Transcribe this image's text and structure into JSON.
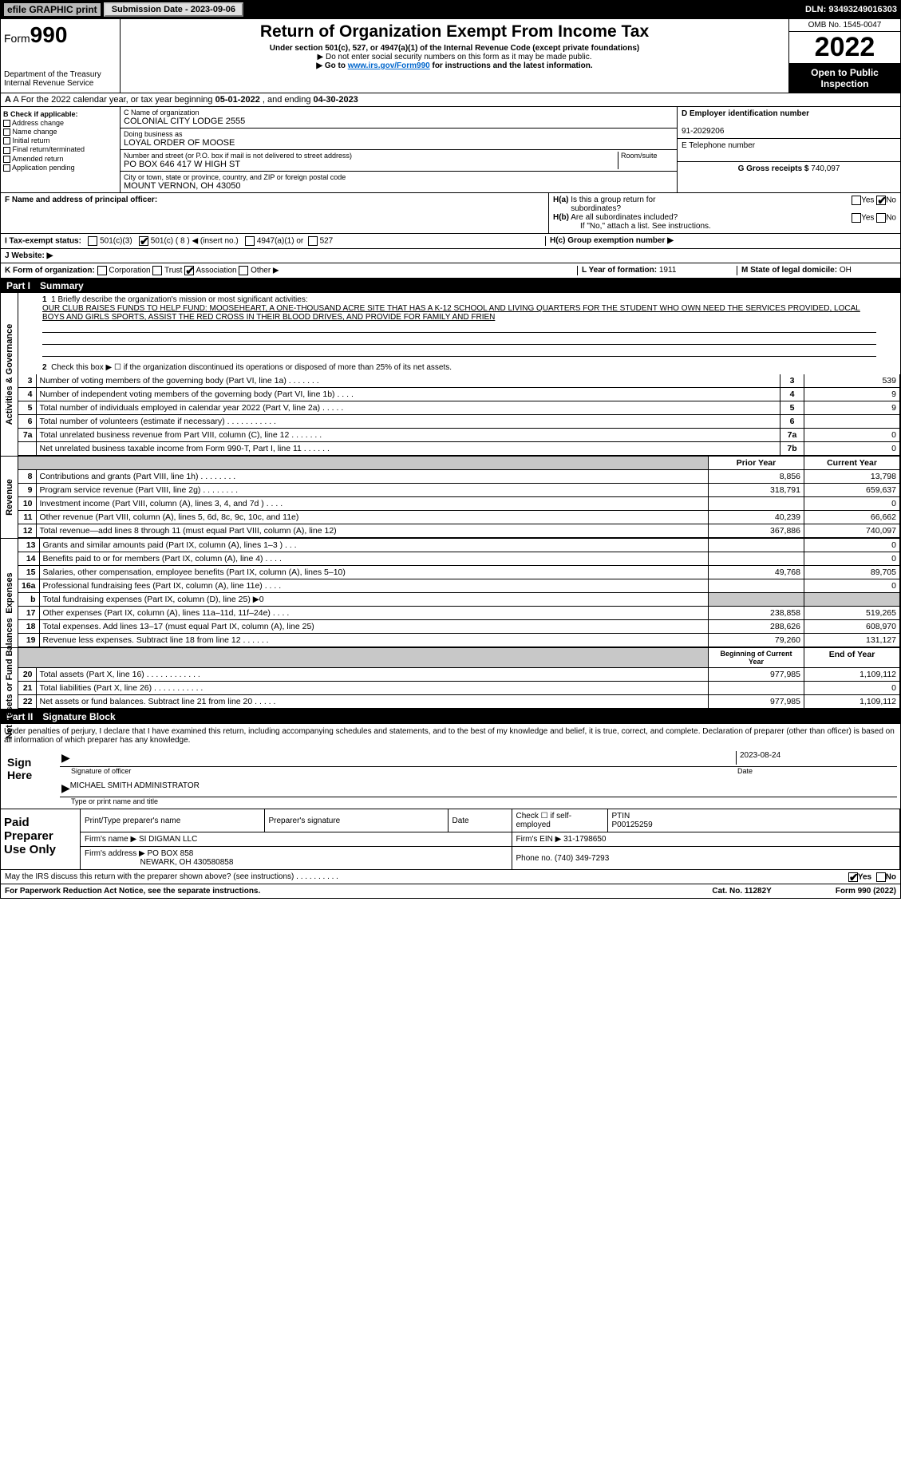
{
  "topbar": {
    "efile": "efile GRAPHIC print",
    "sub": "Submission Date - 2023-09-06",
    "dln": "DLN: 93493249016303"
  },
  "header": {
    "form": "990",
    "formword": "Form",
    "title": "Return of Organization Exempt From Income Tax",
    "sub1": "Under section 501(c), 527, or 4947(a)(1) of the Internal Revenue Code (except private foundations)",
    "sub2": "▶ Do not enter social security numbers on this form as it may be made public.",
    "sub3": "▶ Go to ",
    "sub3link": "www.irs.gov/Form990",
    "sub3b": " for instructions and the latest information.",
    "dept": "Department of the Treasury",
    "irs": "Internal Revenue Service",
    "omb": "OMB No. 1545-0047",
    "year": "2022",
    "inspect": "Open to Public Inspection"
  },
  "rowA": {
    "label": "A For the 2022 calendar year, or tax year beginning ",
    "d1": "05-01-2022",
    "mid": "   , and ending ",
    "d2": "04-30-2023"
  },
  "boxB": {
    "hdr": "B Check if applicable:",
    "items": [
      "Address change",
      "Name change",
      "Initial return",
      "Final return/terminated",
      "Amended return",
      "Application pending"
    ]
  },
  "boxC": {
    "c": "C Name of organization",
    "cval": "COLONIAL CITY LODGE 2555",
    "dba": "Doing business as",
    "dbaval": "LOYAL ORDER OF MOOSE",
    "addr": "Number and street (or P.O. box if mail is not delivered to street address)",
    "room": "Room/suite",
    "addrval": "PO BOX 646 417 W HIGH ST",
    "city": "City or town, state or province, country, and ZIP or foreign postal code",
    "cityval": "MOUNT VERNON, OH  43050"
  },
  "boxD": {
    "d": "D Employer identification number",
    "dval": "91-2029206",
    "e": "E Telephone number",
    "g": "G Gross receipts $ ",
    "gval": "740,097"
  },
  "rowF": {
    "f": "F  Name and address of principal officer:",
    "ha": "H(a)  Is this a group return for subordinates?",
    "hay": "Yes",
    "han": "No",
    "hb": "H(b)  Are all subordinates included?",
    "hby": "Yes",
    "hbn": "No",
    "hbnote": "If \"No,\" attach a list. See instructions.",
    "hc": "H(c)  Group exemption number ▶"
  },
  "rowI": {
    "i": "I   Tax-exempt status:",
    "o1": "501(c)(3)",
    "o2": "501(c) ( 8 ) ◀ (insert no.)",
    "o3": "4947(a)(1) or",
    "o4": "527"
  },
  "rowJ": {
    "j": "J   Website: ▶"
  },
  "rowK": {
    "k": "K Form of organization:",
    "o1": "Corporation",
    "o2": "Trust",
    "o3": "Association",
    "o4": "Other ▶",
    "l": "L Year of formation: ",
    "lval": "1911",
    "m": "M State of legal domicile: ",
    "mval": "OH"
  },
  "part1": {
    "num": "Part I",
    "title": "Summary"
  },
  "p1": {
    "q1": "1  Briefly describe the organization's mission or most significant activities:",
    "q1val": "OUR CLUB RAISES FUNDS TO HELP FUND: MOOSEHEART, A ONE-THOUSAND ACRE SITE THAT HAS A K-12 SCHOOL AND LIVING QUARTERS FOR THE STUDENT WHO OWN NEED THE SERVICES PROVIDED, LOCAL BOYS AND GIRLS SPORTS, ASSIST THE RED CROSS IN THEIR BLOOD DRIVES, AND PROVIDE FOR FAMILY AND FRIEN",
    "q2": "Check this box ▶ ☐  if the organization discontinued its operations or disposed of more than 25% of its net assets.",
    "rows": [
      {
        "n": "3",
        "d": "Number of voting members of the governing body (Part VI, line 1a)   .    .    .    .    .    .    .",
        "b": "3",
        "v": "539"
      },
      {
        "n": "4",
        "d": "Number of independent voting members of the governing body (Part VI, line 1b)   .    .    .    .",
        "b": "4",
        "v": "9"
      },
      {
        "n": "5",
        "d": "Total number of individuals employed in calendar year 2022 (Part V, line 2a)   .    .    .    .    .",
        "b": "5",
        "v": "9"
      },
      {
        "n": "6",
        "d": "Total number of volunteers (estimate if necessary)    .    .    .    .    .    .    .    .    .    .    .",
        "b": "6",
        "v": ""
      },
      {
        "n": "7a",
        "d": "Total unrelated business revenue from Part VIII, column (C), line 12    .    .    .    .    .    .    .",
        "b": "7a",
        "v": "0"
      },
      {
        "n": "",
        "d": "Net unrelated business taxable income from Form 990-T, Part I, line 11    .    .    .    .    .    .",
        "b": "7b",
        "v": "0"
      }
    ]
  },
  "rev": {
    "hdr1": "Prior Year",
    "hdr2": "Current Year",
    "rows": [
      {
        "n": "8",
        "d": "Contributions and grants (Part VIII, line 1h)    .    .    .    .    .    .    .    .",
        "p": "8,856",
        "c": "13,798"
      },
      {
        "n": "9",
        "d": "Program service revenue (Part VIII, line 2g)    .    .    .    .    .    .    .    .",
        "p": "318,791",
        "c": "659,637"
      },
      {
        "n": "10",
        "d": "Investment income (Part VIII, column (A), lines 3, 4, and 7d )    .    .    .    .",
        "p": "",
        "c": "0"
      },
      {
        "n": "11",
        "d": "Other revenue (Part VIII, column (A), lines 5, 6d, 8c, 9c, 10c, and 11e)",
        "p": "40,239",
        "c": "66,662"
      },
      {
        "n": "12",
        "d": "Total revenue—add lines 8 through 11 (must equal Part VIII, column (A), line 12)",
        "p": "367,886",
        "c": "740,097"
      }
    ]
  },
  "exp": {
    "rows": [
      {
        "n": "13",
        "d": "Grants and similar amounts paid (Part IX, column (A), lines 1–3 )    .    .    .",
        "p": "",
        "c": "0"
      },
      {
        "n": "14",
        "d": "Benefits paid to or for members (Part IX, column (A), line 4)    .    .    .    .",
        "p": "",
        "c": "0"
      },
      {
        "n": "15",
        "d": "Salaries, other compensation, employee benefits (Part IX, column (A), lines 5–10)",
        "p": "49,768",
        "c": "89,705"
      },
      {
        "n": "16a",
        "d": "Professional fundraising fees (Part IX, column (A), line 11e)    .    .    .    .",
        "p": "",
        "c": "0"
      },
      {
        "n": "b",
        "d": "Total fundraising expenses (Part IX, column (D), line 25) ▶0",
        "p": "grey",
        "c": "grey"
      },
      {
        "n": "17",
        "d": "Other expenses (Part IX, column (A), lines 11a–11d, 11f–24e)    .    .    .    .",
        "p": "238,858",
        "c": "519,265"
      },
      {
        "n": "18",
        "d": "Total expenses. Add lines 13–17 (must equal Part IX, column (A), line 25)",
        "p": "288,626",
        "c": "608,970"
      },
      {
        "n": "19",
        "d": "Revenue less expenses. Subtract line 18 from line 12    .    .    .    .    .    .",
        "p": "79,260",
        "c": "131,127"
      }
    ]
  },
  "net": {
    "hdr1": "Beginning of Current Year",
    "hdr2": "End of Year",
    "rows": [
      {
        "n": "20",
        "d": "Total assets (Part X, line 16)    .    .    .    .    .    .    .    .    .    .    .    .",
        "p": "977,985",
        "c": "1,109,112"
      },
      {
        "n": "21",
        "d": "Total liabilities (Part X, line 26)    .    .    .    .    .    .    .    .    .    .    .",
        "p": "",
        "c": "0"
      },
      {
        "n": "22",
        "d": "Net assets or fund balances. Subtract line 21 from line 20    .    .    .    .    .",
        "p": "977,985",
        "c": "1,109,112"
      }
    ]
  },
  "part2": {
    "num": "Part II",
    "title": "Signature Block"
  },
  "sig": {
    "decl": "Under penalties of perjury, I declare that I have examined this return, including accompanying schedules and statements, and to the best of my knowledge and belief, it is true, correct, and complete. Declaration of preparer (other than officer) is based on all information of which preparer has any knowledge.",
    "sign": "Sign Here",
    "sigoff": "Signature of officer",
    "date": "Date",
    "dateval": "2023-08-24",
    "name": "MICHAEL SMITH  ADMINISTRATOR",
    "nametxt": "Type or print name and title"
  },
  "prep": {
    "lbl": "Paid Preparer Use Only",
    "h1": "Print/Type preparer's name",
    "h2": "Preparer's signature",
    "h3": "Date",
    "h4": "Check ☐  if self-employed",
    "h5": "PTIN",
    "ptin": "P00125259",
    "firm": "Firm's name    ▶ ",
    "firmval": "SI DIGMAN LLC",
    "ein": "Firm's EIN ▶ ",
    "einval": "31-1798650",
    "addr": "Firm's address ▶ ",
    "addrval": "PO BOX 858",
    "addr2": "NEWARK, OH  430580858",
    "phone": "Phone no. ",
    "phoneval": "(740) 349-7293"
  },
  "may": {
    "q": "May the IRS discuss this return with the preparer shown above? (see instructions)    .    .    .    .    .    .    .    .    .    .",
    "y": "Yes",
    "n": "No"
  },
  "footer": {
    "a": "For Paperwork Reduction Act Notice, see the separate instructions.",
    "b": "Cat. No. 11282Y",
    "c": "Form 990 (2022)"
  },
  "sidelabels": {
    "act": "Activities & Governance",
    "rev": "Revenue",
    "exp": "Expenses",
    "net": "Net Assets or Fund Balances"
  }
}
